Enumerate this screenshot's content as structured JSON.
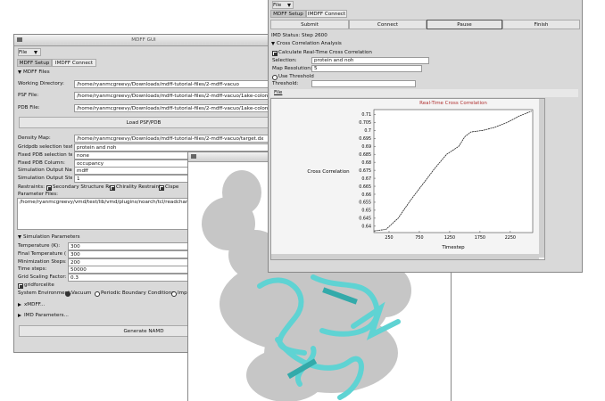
{
  "mdff_window": {
    "title": "MDFF GUI",
    "menu": "File",
    "tabs": [
      "MDFF Setup",
      "IMDFF Connect"
    ],
    "files_section": "MDFF Files",
    "file_fields": [
      {
        "label": "Working Directory:",
        "value": "/home/ryanmcgreevy/Downloads/mdff-tutorial-files/2-mdff-vacuo"
      },
      {
        "label": "PSF File:",
        "value": "/home/ryanmcgreevy/Downloads/mdff-tutorial-files/2-mdff-vacuo/1ake-colonis_autopsf.ps"
      },
      {
        "label": "PDB File:",
        "value": "/home/ryanmcgreevy/Downloads/mdff-tutorial-files/2-mdff-vacuo/1ake-colonis_autopsf.pd"
      }
    ],
    "load_button": "Load PSF/PDB",
    "setup_fields": [
      {
        "label": "Density Map:",
        "value": "/home/ryanmcgreevy/Downloads/mdff-tutorial-files/2-mdff-vacuo/target.dx"
      },
      {
        "label": "Gridpdb selection text:",
        "value": "protein and noh"
      },
      {
        "label": "Fixed PDB selection text:",
        "value": "none"
      },
      {
        "label": "Fixed PDB Column:",
        "value": "occupancy"
      },
      {
        "label": "Simulation Output Name:",
        "value": "mdff"
      },
      {
        "label": "Simulation Output Step:",
        "value": "1"
      }
    ],
    "restraints": {
      "label": "Restraints:",
      "options": [
        "Secondary Structure Restraints",
        "Chirality Restraints",
        "Cispe"
      ]
    },
    "parameter_files": {
      "label": "Parameter Files:",
      "value": "/home/ryanmcgreevy/vmd/test/lib/vmd/plugins/noarch/tcl/readcharmmpar1.2/p"
    },
    "simulation_section": "Simulation Parameters",
    "simulation_fields": [
      {
        "label": "Temperature (K):",
        "value": "300"
      },
      {
        "label": "Final Temperature (K):",
        "value": "300"
      },
      {
        "label": "Minimization Steps:",
        "value": "200"
      },
      {
        "label": "Time steps:",
        "value": "50000"
      },
      {
        "label": "Grid Scaling Factor:",
        "value": "0.3"
      }
    ],
    "gridforcelite": "gridforcelite",
    "environment": {
      "label": "System Environment:",
      "options": [
        "Vacuum",
        "Periodic Boundary Conditions",
        "Implici"
      ]
    },
    "xmdff": "xMDFF...",
    "imd_parameters": "IMD Parameters...",
    "generate_button": "Generate NAMD"
  },
  "imd_window": {
    "menu": "File",
    "tabs": [
      "MDFF Setup",
      "IMDFF Connect"
    ],
    "buttons": [
      "Submit",
      "Connect",
      "Pause",
      "Finish"
    ],
    "status": "IMD Status: Step 2600",
    "cc_section": "Cross Correlation Analysis",
    "calculate": "Calculate Real-Time Cross Correlation",
    "fields": [
      {
        "label": "Selection:",
        "value": "protein and noh"
      },
      {
        "label": "Map Resolution:",
        "value": "5"
      }
    ],
    "use_threshold": "Use Threshold",
    "threshold_label": "Threshold:",
    "plot_menu": "File"
  },
  "chart_data": {
    "type": "line",
    "title": "Real-Time Cross Correlation",
    "x_label": "Timestep",
    "y_label": "Cross Correlation",
    "x": [
      0,
      200,
      400,
      600,
      800,
      1000,
      1200,
      1400,
      1500,
      1600,
      1800,
      2000,
      2200,
      2400,
      2600
    ],
    "values": [
      0.637,
      0.638,
      0.645,
      0.656,
      0.666,
      0.676,
      0.685,
      0.69,
      0.696,
      0.699,
      0.7,
      0.702,
      0.705,
      0.709,
      0.712
    ],
    "color": "#222222",
    "xlim": [
      0,
      2620
    ],
    "ylim": [
      0.636,
      0.713
    ],
    "xticks": [
      250,
      750,
      1250,
      1750,
      2250
    ],
    "yticks": [
      0.64,
      0.645,
      0.65,
      0.655,
      0.66,
      0.665,
      0.67,
      0.675,
      0.68,
      0.685,
      0.69,
      0.695,
      0.7,
      0.705,
      0.71
    ]
  }
}
